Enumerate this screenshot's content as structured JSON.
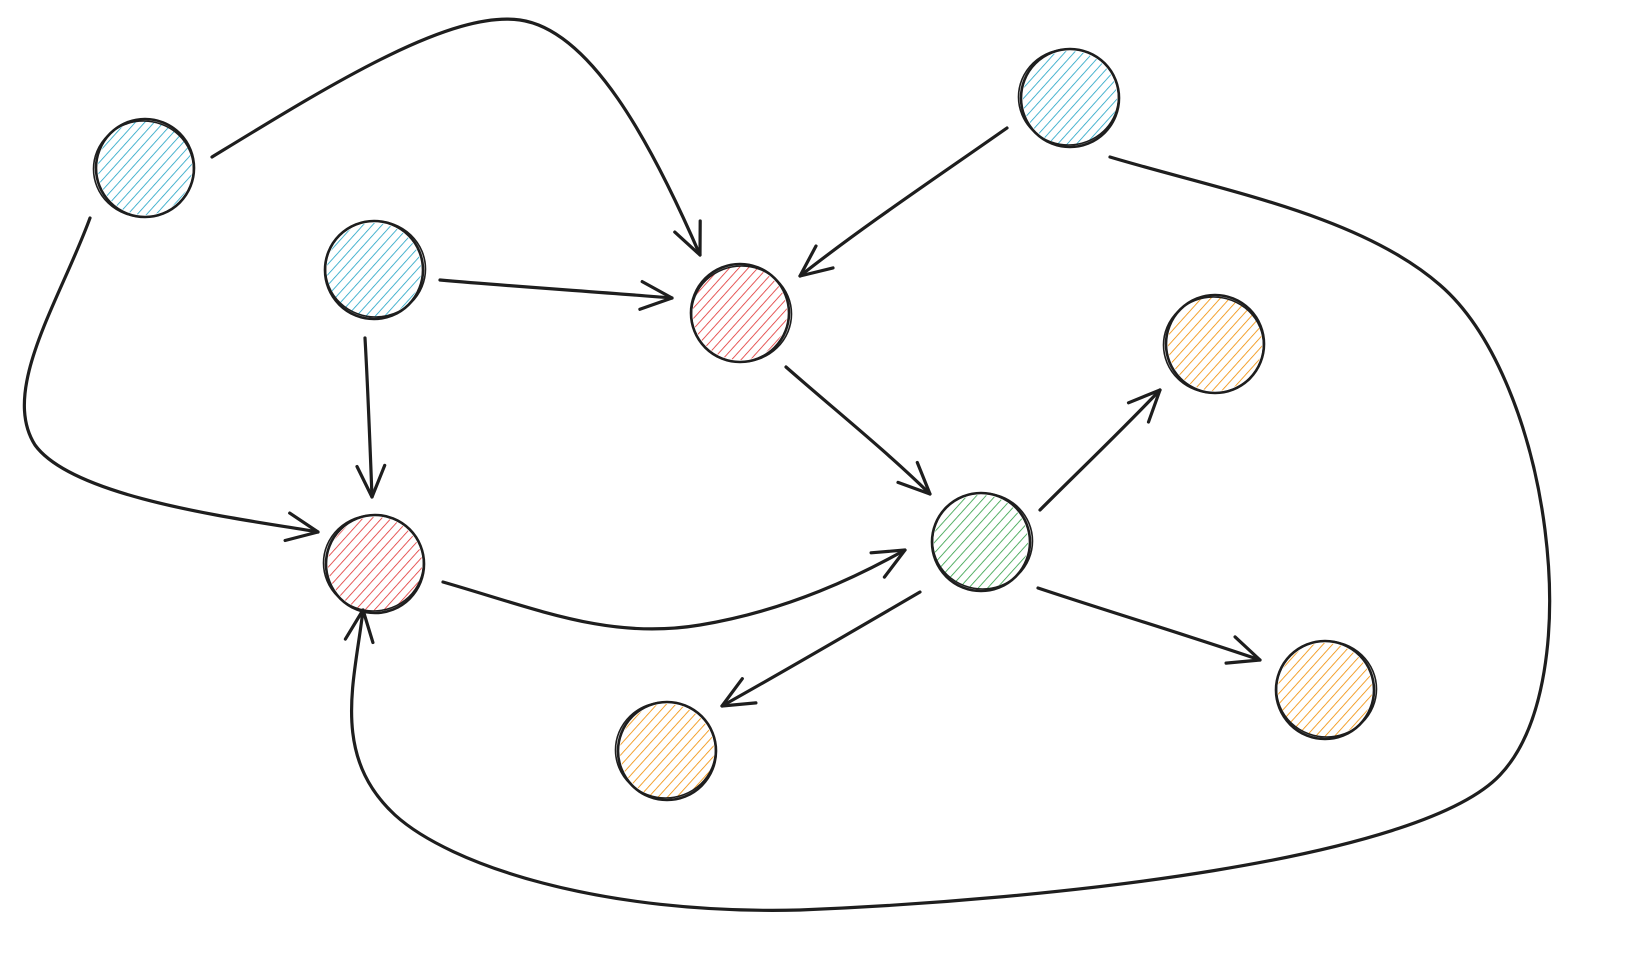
{
  "diagram": {
    "type": "directed-graph",
    "style": "hand-drawn",
    "background": "#ffffff",
    "stroke_color": "#1e1e1e",
    "palette": {
      "blue": "#1fa2c4",
      "red": "#e03131",
      "green": "#2f9e44",
      "orange": "#f08c00"
    },
    "nodes": [
      {
        "id": "n1",
        "color": "blue"
      },
      {
        "id": "n2",
        "color": "blue"
      },
      {
        "id": "n3",
        "color": "blue"
      },
      {
        "id": "n4",
        "color": "red"
      },
      {
        "id": "n5",
        "color": "red"
      },
      {
        "id": "n6",
        "color": "green"
      },
      {
        "id": "n7",
        "color": "orange"
      },
      {
        "id": "n8",
        "color": "orange"
      },
      {
        "id": "n9",
        "color": "orange"
      }
    ],
    "edges": [
      {
        "from": "n1",
        "to": "n4"
      },
      {
        "from": "n1",
        "to": "n5"
      },
      {
        "from": "n2",
        "to": "n4"
      },
      {
        "from": "n2",
        "to": "n5"
      },
      {
        "from": "n3",
        "to": "n4"
      },
      {
        "from": "n3",
        "to": "n5"
      },
      {
        "from": "n4",
        "to": "n6"
      },
      {
        "from": "n5",
        "to": "n6"
      },
      {
        "from": "n6",
        "to": "n7"
      },
      {
        "from": "n6",
        "to": "n8"
      },
      {
        "from": "n6",
        "to": "n9"
      }
    ]
  }
}
